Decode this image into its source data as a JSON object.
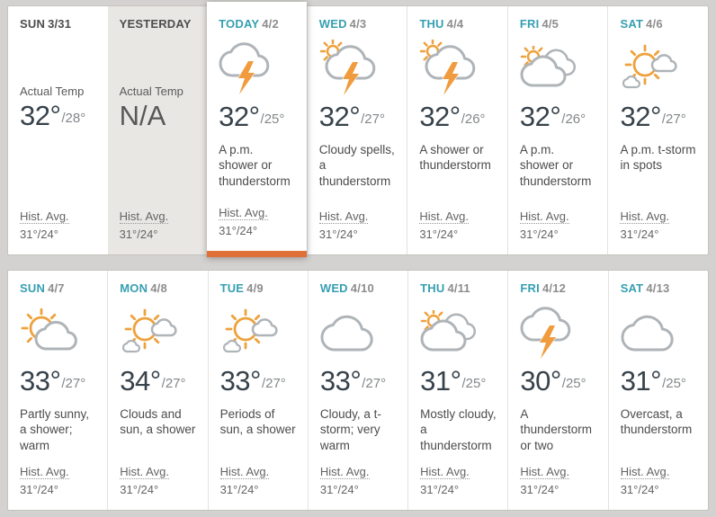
{
  "theme": {
    "accent_orange": "#df7038",
    "teal": "#369fb2",
    "page_background": "#d4d2d0",
    "yesterday_background": "#e9e7e4",
    "sun_color": "#eda23d",
    "cloud_color": "#afb4b8",
    "lightning_color": "#f09c3e"
  },
  "rows": [
    {
      "cards": [
        {
          "day": "SUN",
          "date": "3/31",
          "variant": "past",
          "header_dark": true,
          "actual_label": "Actual Temp",
          "high": "32°",
          "low": "/28°",
          "icon": null,
          "desc": "",
          "hist_label": "Hist. Avg.",
          "hist_value": "31°/24°"
        },
        {
          "day": "YESTERDAY",
          "date": "",
          "variant": "yesterday",
          "header_dark": true,
          "actual_label": "Actual Temp",
          "high": "N/A",
          "low": "",
          "icon": null,
          "desc": "",
          "hist_label": "Hist. Avg.",
          "hist_value": "31°/24°"
        },
        {
          "day": "TODAY",
          "date": "4/2",
          "variant": "today",
          "header_dark": false,
          "actual_label": "",
          "high": "32°",
          "low": "/25°",
          "icon": "thunderstorm",
          "desc": "A p.m. shower or thunderstorm",
          "hist_label": "Hist. Avg.",
          "hist_value": "31°/24°"
        },
        {
          "day": "WED",
          "date": "4/3",
          "variant": "forecast",
          "header_dark": false,
          "actual_label": "",
          "high": "32°",
          "low": "/27°",
          "icon": "sun-cloud-thunderstorm",
          "desc": "Cloudy spells, a thunderstorm",
          "hist_label": "Hist. Avg.",
          "hist_value": "31°/24°"
        },
        {
          "day": "THU",
          "date": "4/4",
          "variant": "forecast",
          "header_dark": false,
          "actual_label": "",
          "high": "32°",
          "low": "/26°",
          "icon": "sun-cloud-thunderstorm",
          "desc": "A shower or thunderstorm",
          "hist_label": "Hist. Avg.",
          "hist_value": "31°/24°"
        },
        {
          "day": "FRI",
          "date": "4/5",
          "variant": "forecast",
          "header_dark": false,
          "actual_label": "",
          "high": "32°",
          "low": "/26°",
          "icon": "sun-behind-clouds",
          "desc": "A p.m. shower or thunderstorm",
          "hist_label": "Hist. Avg.",
          "hist_value": "31°/24°"
        },
        {
          "day": "SAT",
          "date": "4/6",
          "variant": "forecast",
          "header_dark": false,
          "actual_label": "",
          "high": "32°",
          "low": "/27°",
          "icon": "sun-with-clouds",
          "desc": "A p.m. t-storm in spots",
          "hist_label": "Hist. Avg.",
          "hist_value": "31°/24°"
        }
      ]
    },
    {
      "cards": [
        {
          "day": "SUN",
          "date": "4/7",
          "variant": "forecast",
          "header_dark": false,
          "actual_label": "",
          "high": "33°",
          "low": "/27°",
          "icon": "partly-sunny",
          "desc": "Partly sunny, a shower; warm",
          "hist_label": "Hist. Avg.",
          "hist_value": "31°/24°"
        },
        {
          "day": "MON",
          "date": "4/8",
          "variant": "forecast",
          "header_dark": false,
          "actual_label": "",
          "high": "34°",
          "low": "/27°",
          "icon": "sun-with-clouds",
          "desc": "Clouds and sun, a shower",
          "hist_label": "Hist. Avg.",
          "hist_value": "31°/24°"
        },
        {
          "day": "TUE",
          "date": "4/9",
          "variant": "forecast",
          "header_dark": false,
          "actual_label": "",
          "high": "33°",
          "low": "/27°",
          "icon": "sun-with-clouds",
          "desc": "Periods of sun, a shower",
          "hist_label": "Hist. Avg.",
          "hist_value": "31°/24°"
        },
        {
          "day": "WED",
          "date": "4/10",
          "variant": "forecast",
          "header_dark": false,
          "actual_label": "",
          "high": "33°",
          "low": "/27°",
          "icon": "cloudy",
          "desc": "Cloudy, a t-storm; very warm",
          "hist_label": "Hist. Avg.",
          "hist_value": "31°/24°"
        },
        {
          "day": "THU",
          "date": "4/11",
          "variant": "forecast",
          "header_dark": false,
          "actual_label": "",
          "high": "31°",
          "low": "/25°",
          "icon": "sun-behind-clouds",
          "desc": "Mostly cloudy, a thunderstorm",
          "hist_label": "Hist. Avg.",
          "hist_value": "31°/24°"
        },
        {
          "day": "FRI",
          "date": "4/12",
          "variant": "forecast",
          "header_dark": false,
          "actual_label": "",
          "high": "30°",
          "low": "/25°",
          "icon": "thunderstorm",
          "desc": "A thunderstorm or two",
          "hist_label": "Hist. Avg.",
          "hist_value": "31°/24°"
        },
        {
          "day": "SAT",
          "date": "4/13",
          "variant": "forecast",
          "header_dark": false,
          "actual_label": "",
          "high": "31°",
          "low": "/25°",
          "icon": "cloudy",
          "desc": "Overcast, a thunderstorm",
          "hist_label": "Hist. Avg.",
          "hist_value": "31°/24°"
        }
      ]
    }
  ]
}
